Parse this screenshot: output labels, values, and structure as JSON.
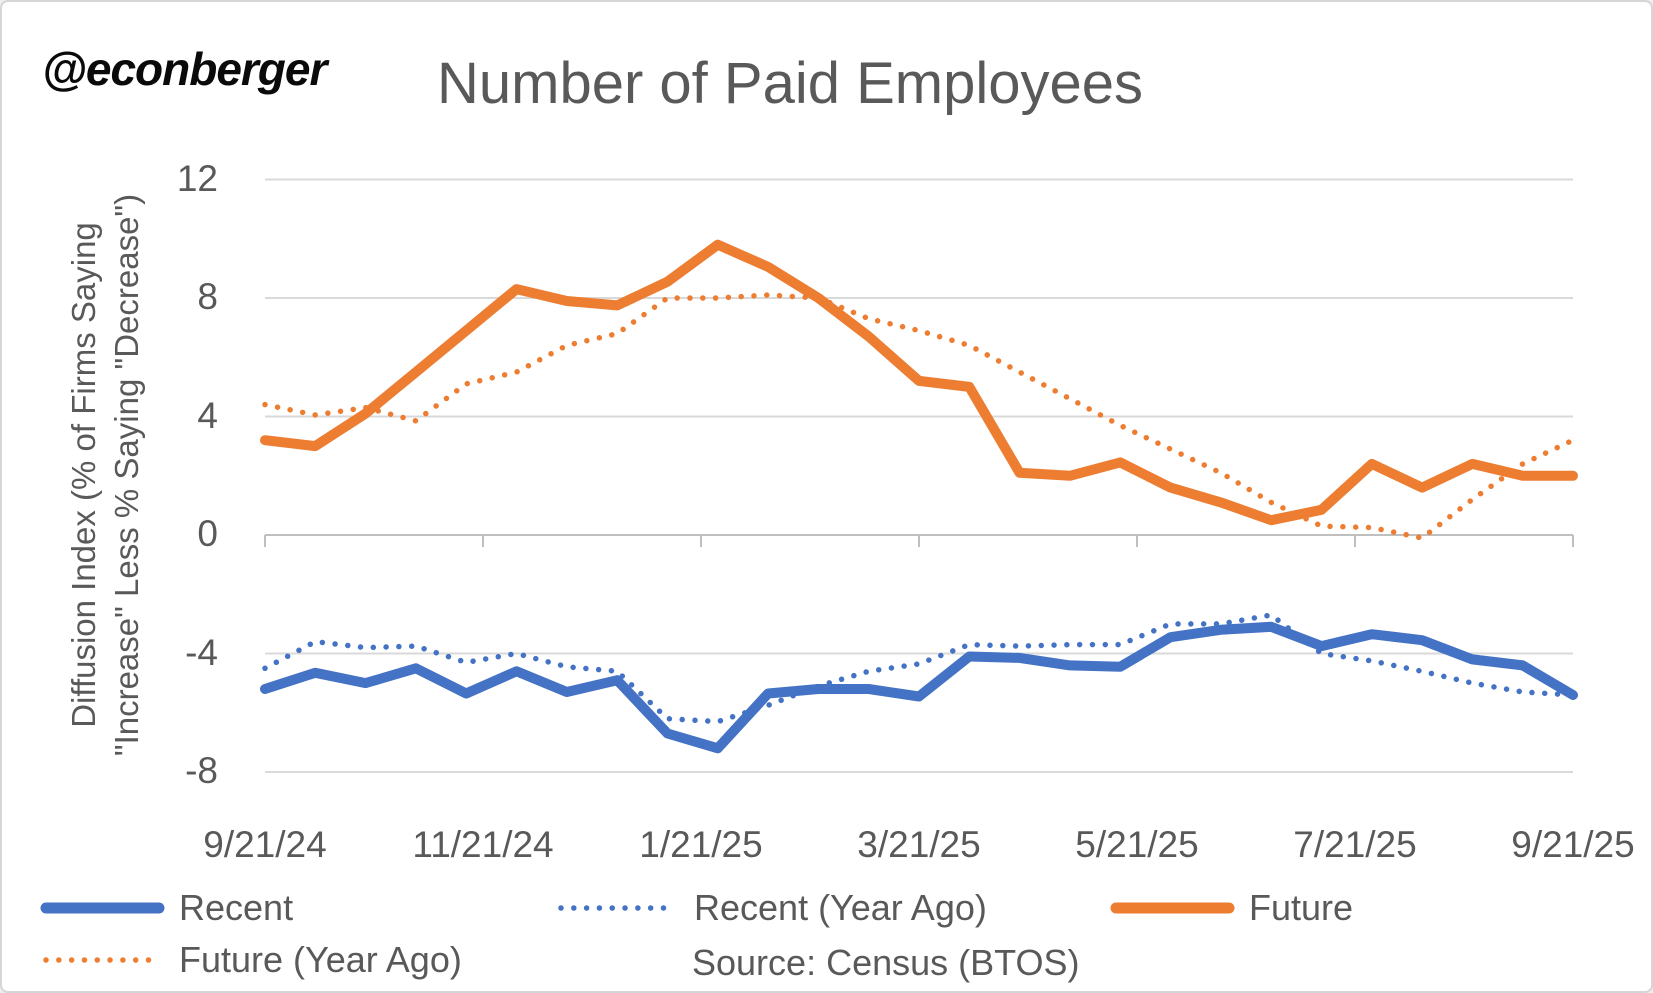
{
  "watermark": "@econberger",
  "chart_data": {
    "type": "line",
    "title": "Number of Paid Employees",
    "ylabel_line1": "Diffusion Index (% of Firms Saying",
    "ylabel_line2": "\"Increase\" Less % Saying \"Decrease\")",
    "source": "Source: Census (BTOS)",
    "x_tick_labels": [
      "9/21/24",
      "11/21/24",
      "1/21/25",
      "3/21/25",
      "5/21/25",
      "7/21/25",
      "9/21/25"
    ],
    "y_ticks": [
      12,
      8,
      4,
      0,
      -4,
      -8
    ],
    "ylim": [
      -9.4,
      12.6
    ],
    "grid": true,
    "legend_position": "bottom",
    "grid_color": "#D9D9D9",
    "axis_color": "#BFBFBF",
    "text_color": "#595959",
    "n_points": 27,
    "series": [
      {
        "name": "Recent",
        "color": "#4472C4",
        "style": "solid",
        "values": [
          -5.2,
          -4.65,
          -5.0,
          -4.5,
          -5.35,
          -4.6,
          -5.3,
          -4.9,
          -6.7,
          -7.2,
          -5.35,
          -5.2,
          -5.2,
          -5.45,
          -4.1,
          -4.15,
          -4.4,
          -4.45,
          -3.45,
          -3.2,
          -3.1,
          -3.75,
          -3.35,
          -3.55,
          -4.2,
          -4.4,
          -5.4
        ]
      },
      {
        "name": "Recent (Year Ago)",
        "color": "#4472C4",
        "style": "dotted",
        "values": [
          -4.5,
          -3.6,
          -3.8,
          -3.75,
          -4.3,
          -4.0,
          -4.45,
          -4.6,
          -6.2,
          -6.3,
          -5.75,
          -5.1,
          -4.6,
          -4.35,
          -3.7,
          -3.75,
          -3.7,
          -3.7,
          -3.0,
          -3.0,
          -2.7,
          -4.0,
          -4.25,
          -4.6,
          -5.0,
          -5.3,
          -5.4
        ]
      },
      {
        "name": "Future",
        "color": "#ED7D31",
        "style": "solid",
        "values": [
          3.2,
          3.0,
          4.1,
          5.5,
          6.9,
          8.3,
          7.9,
          7.75,
          8.55,
          9.8,
          9.05,
          8.0,
          6.7,
          5.2,
          5.0,
          2.1,
          2.0,
          2.45,
          1.6,
          1.1,
          0.5,
          0.85,
          2.4,
          1.6,
          2.4,
          2.0,
          2.0
        ]
      },
      {
        "name": "Future (Year Ago)",
        "color": "#ED7D31",
        "style": "dotted",
        "values": [
          4.4,
          4.05,
          4.3,
          3.85,
          5.1,
          5.5,
          6.4,
          6.8,
          8.0,
          8.0,
          8.1,
          8.0,
          7.3,
          6.9,
          6.4,
          5.5,
          4.6,
          3.7,
          2.9,
          2.1,
          1.1,
          0.3,
          0.25,
          -0.1,
          1.2,
          2.4,
          3.2
        ]
      }
    ]
  }
}
